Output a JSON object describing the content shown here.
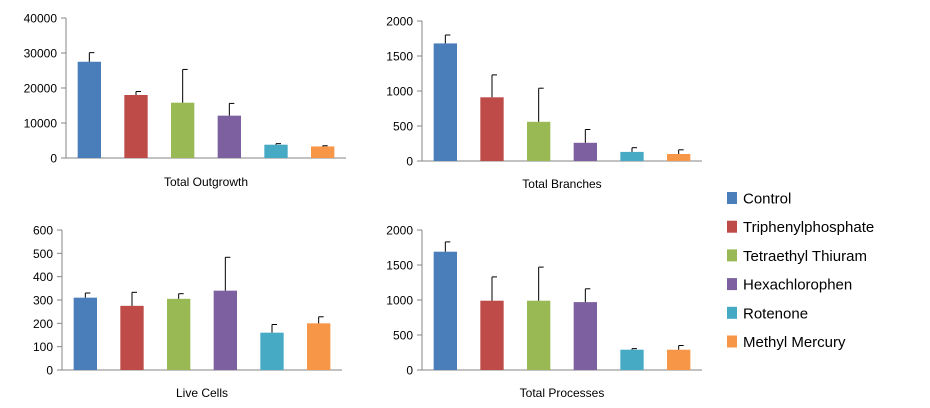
{
  "legend": {
    "placement": "right",
    "entries": [
      "Control",
      "Triphenylphosphate",
      "Tetraethyl Thiuram",
      "Hexachlorophen",
      "Rotenone",
      "Methyl Mercury"
    ]
  },
  "series_colors": [
    "#4A7EBB",
    "#BE4B48",
    "#98B954",
    "#7D60A0",
    "#46AAC5",
    "#F79646"
  ],
  "error_bar_color": "#000000",
  "chart_data": [
    {
      "type": "bar",
      "title": "",
      "xlabel": "Total Outgrowth",
      "ylabel": "",
      "categories": [
        "Control",
        "Triphenylphosphate",
        "Tetraethyl Thiuram",
        "Hexachlorophen",
        "Rotenone",
        "Methyl Mercury"
      ],
      "values": [
        27500,
        18000,
        15800,
        12100,
        3800,
        3300
      ],
      "errors": [
        2600,
        1000,
        9500,
        3500,
        300,
        200
      ],
      "ylim": [
        0,
        40000
      ],
      "yticks": [
        0,
        10000,
        20000,
        30000,
        40000
      ],
      "grid": false
    },
    {
      "type": "bar",
      "title": "",
      "xlabel": "Total Branches",
      "ylabel": "",
      "categories": [
        "Control",
        "Triphenylphosphate",
        "Tetraethyl Thiuram",
        "Hexachlorophen",
        "Rotenone",
        "Methyl Mercury"
      ],
      "values": [
        1680,
        910,
        560,
        260,
        130,
        100
      ],
      "errors": [
        120,
        320,
        480,
        190,
        60,
        60
      ],
      "ylim": [
        0,
        2000
      ],
      "yticks": [
        0,
        500,
        1000,
        1500,
        2000
      ],
      "grid": false
    },
    {
      "type": "bar",
      "title": "",
      "xlabel": "Live Cells",
      "ylabel": "",
      "categories": [
        "Control",
        "Triphenylphosphate",
        "Tetraethyl Thiuram",
        "Hexachlorophen",
        "Rotenone",
        "Methyl Mercury"
      ],
      "values": [
        310,
        275,
        305,
        340,
        160,
        200
      ],
      "errors": [
        20,
        58,
        22,
        143,
        35,
        28
      ],
      "ylim": [
        0,
        600
      ],
      "yticks": [
        0,
        100,
        200,
        300,
        400,
        500,
        600
      ],
      "grid": false
    },
    {
      "type": "bar",
      "title": "",
      "xlabel": "Total Processes",
      "ylabel": "",
      "categories": [
        "Control",
        "Triphenylphosphate",
        "Tetraethyl Thiuram",
        "Hexachlorophen",
        "Rotenone",
        "Methyl Mercury"
      ],
      "values": [
        1690,
        990,
        990,
        970,
        290,
        290
      ],
      "errors": [
        140,
        340,
        480,
        190,
        15,
        60
      ],
      "ylim": [
        0,
        2000
      ],
      "yticks": [
        0,
        500,
        1000,
        1500,
        2000
      ],
      "grid": false
    }
  ]
}
